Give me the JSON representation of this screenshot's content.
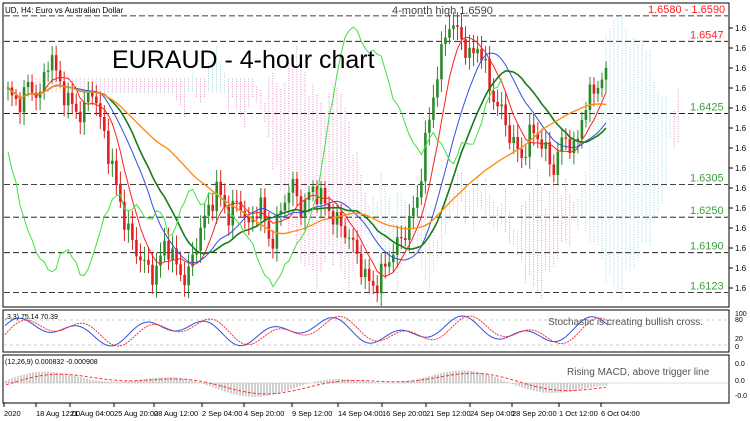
{
  "header": {
    "symbol_line": "UD, H4: Euro vs Australian Dollar",
    "title": "EURAUD - 4-hour chart",
    "annotation": "4-month high 1.6590"
  },
  "price_levels": [
    {
      "value": 1.659,
      "label": "1.6580 - 1.6590",
      "color": "#ff2020"
    },
    {
      "value": 1.6547,
      "label": "1.6547",
      "color": "#ff2020"
    },
    {
      "value": 1.6425,
      "label": "1.6425",
      "color": "#3f9f3f"
    },
    {
      "value": 1.6305,
      "label": "1.6305",
      "color": "#3f9f3f"
    },
    {
      "value": 1.625,
      "label": "1.6250",
      "color": "#3f9f3f"
    },
    {
      "value": 1.619,
      "label": "1.6190",
      "color": "#3f9f3f"
    },
    {
      "value": 1.6123,
      "label": "1.6123",
      "color": "#3f9f3f"
    }
  ],
  "right_axis_ticks": [
    "1.6",
    "1.6",
    "1.6",
    "1.6",
    "1.6",
    "1.6",
    "1.6",
    "1.6",
    "1.6",
    "1.6",
    "1.6",
    "1.6",
    "1.6",
    "1.6"
  ],
  "stochastic": {
    "label": ",3,3) 75.14 70.39",
    "note": "Stochastic is creating bullish cross.",
    "axis": [
      "100",
      "80",
      "20",
      "0"
    ]
  },
  "macd": {
    "label": "(12,26,9) 0.000832 -0.000908",
    "note": "Rising MACD, above trigger line",
    "axis": [
      "0.0",
      "0.0",
      "-0.0"
    ]
  },
  "x_axis": [
    "2020",
    "18 Aug 12:00",
    "21 Aug 04:00",
    "25 Aug 20:00",
    "28 Aug 12:00",
    "2 Sep 04:00",
    "4 Sep 20:00",
    "9 Sep 12:00",
    "14 Sep 04:00",
    "16 Sep 20:00",
    "21 Sep 12:00",
    "24 Sep 04:00",
    "28 Sep 20:00",
    "1 Oct 12:00",
    "6 Oct 04:00"
  ],
  "colors": {
    "bull": "#2a8a2a",
    "bear": "#e02020",
    "sma_fast": "#ff2020",
    "sma_mid": "#1a7a1a",
    "sma_slow": "#ff8c1a",
    "kijun": "#3050e0",
    "chikou": "#40e040",
    "cloud": "#e070c0",
    "cloud_bull": "#80d0e0",
    "stoch_main": "#3050e0",
    "stoch_signal": "#ff3030",
    "macd_hist": "#a0a0a0"
  },
  "chart_data": {
    "type": "candlestick",
    "symbol": "EURAUD",
    "timeframe": "H4",
    "ylim": [
      1.61,
      1.661
    ],
    "close_path": [
      1.646,
      1.644,
      1.6475,
      1.645,
      1.653,
      1.647,
      1.644,
      1.642,
      1.647,
      1.64,
      1.633,
      1.625,
      1.62,
      1.617,
      1.615,
      1.621,
      1.617,
      1.614,
      1.621,
      1.626,
      1.63,
      1.625,
      1.628,
      1.623,
      1.628,
      1.62,
      1.626,
      1.631,
      1.626,
      1.63,
      1.628,
      1.625,
      1.623,
      1.62,
      1.615,
      1.613,
      1.617,
      1.62,
      1.623,
      1.628,
      1.64,
      1.65,
      1.658,
      1.656,
      1.652,
      1.654,
      1.646,
      1.643,
      1.638,
      1.635,
      1.64,
      1.637,
      1.633,
      1.639,
      1.636,
      1.644,
      1.647,
      1.649
    ]
  }
}
